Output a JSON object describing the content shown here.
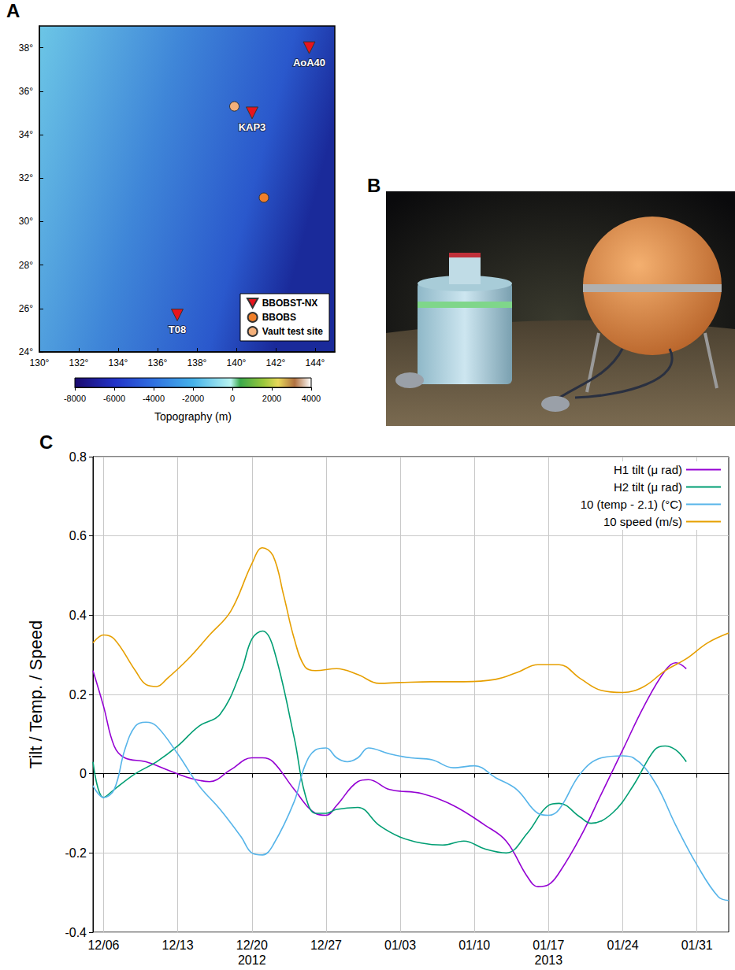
{
  "chart_data": [
    {
      "panel": "A",
      "type": "scatter",
      "xlim": [
        130,
        145
      ],
      "xticks": [
        {
          "value": 130,
          "label": "130°"
        },
        {
          "value": 132,
          "label": "132°"
        },
        {
          "value": 134,
          "label": "134°"
        },
        {
          "value": 136,
          "label": "136°"
        },
        {
          "value": 138,
          "label": "138°"
        },
        {
          "value": 140,
          "label": "140°"
        },
        {
          "value": 142,
          "label": "142°"
        },
        {
          "value": 144,
          "label": "144°"
        }
      ],
      "ylim": [
        24,
        39
      ],
      "yticks": [
        {
          "value": 24,
          "label": "24°"
        },
        {
          "value": 26,
          "label": "26°"
        },
        {
          "value": 28,
          "label": "28°"
        },
        {
          "value": 30,
          "label": "30°"
        },
        {
          "value": 32,
          "label": "32°"
        },
        {
          "value": 34,
          "label": "34°"
        },
        {
          "value": 36,
          "label": "36°"
        },
        {
          "value": 38,
          "label": "38°"
        }
      ],
      "legend": "lower right",
      "series": [
        {
          "name": "BBOBST-NX",
          "color": "#e8141c",
          "marker": "triangle-down",
          "x": [
            143.7,
            140.8,
            137.0
          ],
          "values": [
            38.0,
            35.0,
            25.7
          ],
          "labels": [
            "AoA40",
            "KAP3",
            "T08"
          ]
        },
        {
          "name": "BBOBS",
          "color": "#f07f2a",
          "marker": "circle",
          "x": [
            141.4
          ],
          "values": [
            31.1
          ]
        },
        {
          "name": "Vault test site",
          "color": "#f4b07a",
          "marker": "circle",
          "x": [
            139.9
          ],
          "values": [
            35.3
          ]
        }
      ],
      "colorbar": {
        "label": "Topography (m)",
        "range": [
          -8000,
          4000
        ],
        "ticks": [
          -8000,
          -6000,
          -4000,
          -2000,
          0,
          2000,
          4000
        ]
      }
    },
    {
      "panel": "C",
      "type": "line",
      "ylabel": "Tilt / Temp. / Speed",
      "xlim": [
        "2012-12-05",
        "2013-02-03"
      ],
      "xticks": [
        {
          "value": "2012-12-06",
          "label": "12/06"
        },
        {
          "value": "2012-12-13",
          "label": "12/13"
        },
        {
          "value": "2012-12-20",
          "label": "12/20"
        },
        {
          "value": "2012-12-27",
          "label": "12/27"
        },
        {
          "value": "2013-01-03",
          "label": "01/03"
        },
        {
          "value": "2013-01-10",
          "label": "01/10"
        },
        {
          "value": "2013-01-17",
          "label": "01/17"
        },
        {
          "value": "2013-01-24",
          "label": "01/24"
        },
        {
          "value": "2013-01-31",
          "label": "01/31"
        }
      ],
      "x_groups": [
        {
          "value": "2012-12-20",
          "label": "2012"
        },
        {
          "value": "2013-01-17",
          "label": "2013"
        }
      ],
      "ylim": [
        -0.4,
        0.8
      ],
      "yticks": [
        -0.4,
        -0.2,
        0,
        0.2,
        0.4,
        0.6,
        0.8
      ],
      "grid": true,
      "legend": "upper right",
      "series": [
        {
          "name": "H1 tilt (μ rad)",
          "color": "#9400d3",
          "x": [
            "2012-12-05",
            "2012-12-06",
            "2012-12-07",
            "2012-12-08",
            "2012-12-10",
            "2012-12-12",
            "2012-12-14",
            "2012-12-16",
            "2012-12-18",
            "2012-12-20",
            "2012-12-21",
            "2012-12-22",
            "2012-12-24",
            "2012-12-26",
            "2012-12-27",
            "2012-12-28",
            "2012-12-30",
            "2012-12-31",
            "2013-01-02",
            "2013-01-05",
            "2013-01-08",
            "2013-01-11",
            "2013-01-13",
            "2013-01-15",
            "2013-01-16",
            "2013-01-17",
            "2013-01-18",
            "2013-01-20",
            "2013-01-22",
            "2013-01-24",
            "2013-01-26",
            "2013-01-28",
            "2013-01-29",
            "2013-01-30"
          ],
          "values": [
            0.26,
            0.17,
            0.07,
            0.04,
            0.03,
            0.01,
            -0.01,
            -0.02,
            0.01,
            0.04,
            0.04,
            0.03,
            -0.04,
            -0.1,
            -0.105,
            -0.08,
            -0.02,
            -0.015,
            -0.04,
            -0.05,
            -0.08,
            -0.13,
            -0.17,
            -0.26,
            -0.285,
            -0.28,
            -0.25,
            -0.16,
            -0.05,
            0.06,
            0.17,
            0.26,
            0.28,
            0.265
          ]
        },
        {
          "name": "H2 tilt (μ rad)",
          "color": "#009e73",
          "x": [
            "2012-12-05",
            "2012-12-06",
            "2012-12-07",
            "2012-12-09",
            "2012-12-11",
            "2012-12-13",
            "2012-12-15",
            "2012-12-17",
            "2012-12-19",
            "2012-12-20",
            "2012-12-21",
            "2012-12-22",
            "2012-12-24",
            "2012-12-25",
            "2012-12-26",
            "2012-12-27",
            "2012-12-28",
            "2012-12-30",
            "2013-01-01",
            "2013-01-03",
            "2013-01-05",
            "2013-01-07",
            "2013-01-09",
            "2013-01-11",
            "2013-01-13",
            "2013-01-15",
            "2013-01-17",
            "2013-01-18",
            "2013-01-20",
            "2013-01-21",
            "2013-01-23",
            "2013-01-25",
            "2013-01-27",
            "2013-01-28",
            "2013-01-29",
            "2013-01-30"
          ],
          "values": [
            0.03,
            -0.06,
            -0.04,
            0,
            0.03,
            0.07,
            0.12,
            0.15,
            0.26,
            0.34,
            0.36,
            0.32,
            0.09,
            -0.05,
            -0.1,
            -0.1,
            -0.09,
            -0.085,
            -0.13,
            -0.16,
            -0.175,
            -0.18,
            -0.17,
            -0.19,
            -0.2,
            -0.15,
            -0.08,
            -0.075,
            -0.11,
            -0.125,
            -0.1,
            -0.03,
            0.06,
            0.07,
            0.06,
            0.03
          ]
        },
        {
          "name": "10 (temp - 2.1) (°C)",
          "color": "#56b4e9",
          "x": [
            "2012-12-05",
            "2012-12-06",
            "2012-12-07",
            "2012-12-08",
            "2012-12-09",
            "2012-12-10",
            "2012-12-11",
            "2012-12-13",
            "2012-12-15",
            "2012-12-17",
            "2012-12-19",
            "2012-12-20",
            "2012-12-21",
            "2012-12-22",
            "2012-12-24",
            "2012-12-25",
            "2012-12-26",
            "2012-12-27",
            "2012-12-28",
            "2012-12-29",
            "2012-12-30",
            "2012-12-31",
            "2013-01-02",
            "2013-01-04",
            "2013-01-06",
            "2013-01-08",
            "2013-01-10",
            "2013-01-12",
            "2013-01-14",
            "2013-01-16",
            "2013-01-17",
            "2013-01-18",
            "2013-01-20",
            "2013-01-22",
            "2013-01-24",
            "2013-01-25",
            "2013-01-27",
            "2013-01-29",
            "2013-01-31",
            "2013-02-02",
            "2013-02-03"
          ],
          "values": [
            -0.03,
            -0.06,
            -0.04,
            0.06,
            0.12,
            0.13,
            0.12,
            0.05,
            -0.03,
            -0.09,
            -0.16,
            -0.2,
            -0.205,
            -0.18,
            -0.07,
            0.02,
            0.06,
            0.065,
            0.04,
            0.03,
            0.04,
            0.065,
            0.05,
            0.04,
            0.035,
            0.015,
            0.02,
            -0.01,
            -0.04,
            -0.1,
            -0.105,
            -0.09,
            0,
            0.04,
            0.045,
            0.04,
            -0.02,
            -0.13,
            -0.23,
            -0.31,
            -0.32
          ]
        },
        {
          "name": "10 speed (m/s)",
          "color": "#e69f00",
          "x": [
            "2012-12-05",
            "2012-12-06",
            "2012-12-07",
            "2012-12-09",
            "2012-12-10",
            "2012-12-11",
            "2012-12-12",
            "2012-12-14",
            "2012-12-16",
            "2012-12-18",
            "2012-12-20",
            "2012-12-21",
            "2012-12-22",
            "2012-12-23",
            "2012-12-24",
            "2012-12-25",
            "2012-12-26",
            "2012-12-28",
            "2012-12-30",
            "2013-01-01",
            "2013-01-03",
            "2013-01-06",
            "2013-01-09",
            "2013-01-12",
            "2013-01-14",
            "2013-01-16",
            "2013-01-18",
            "2013-01-20",
            "2013-01-22",
            "2013-01-24",
            "2013-01-26",
            "2013-01-28",
            "2013-01-30",
            "2013-02-01",
            "2013-02-03"
          ],
          "values": [
            0.33,
            0.35,
            0.34,
            0.26,
            0.225,
            0.22,
            0.24,
            0.29,
            0.35,
            0.41,
            0.53,
            0.57,
            0.55,
            0.45,
            0.34,
            0.27,
            0.26,
            0.265,
            0.25,
            0.228,
            0.23,
            0.232,
            0.232,
            0.238,
            0.255,
            0.275,
            0.275,
            0.24,
            0.21,
            0.205,
            0.22,
            0.26,
            0.29,
            0.33,
            0.355
          ]
        }
      ]
    }
  ],
  "photo": {
    "panel": "B"
  }
}
